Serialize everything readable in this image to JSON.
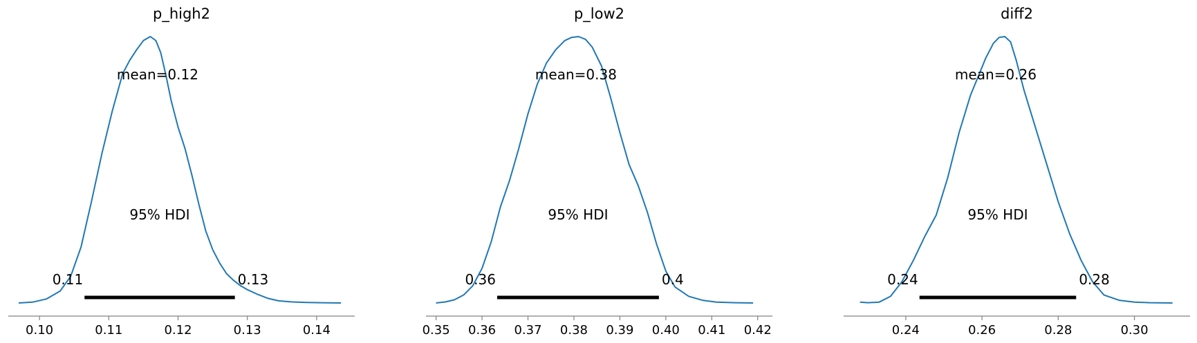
{
  "chart_data": [
    {
      "type": "area",
      "title": "p_high2",
      "xlim": [
        0.0955,
        0.1455
      ],
      "xticks": [
        0.1,
        0.11,
        0.12,
        0.13,
        0.14
      ],
      "xtick_labels": [
        "0.10",
        "0.11",
        "0.12",
        "0.13",
        "0.14"
      ],
      "curve": {
        "x": [
          0.097,
          0.099,
          0.101,
          0.103,
          0.1045,
          0.106,
          0.1075,
          0.109,
          0.1105,
          0.112,
          0.113,
          0.114,
          0.115,
          0.116,
          0.1168,
          0.1175,
          0.1182,
          0.119,
          0.12,
          0.121,
          0.122,
          0.123,
          0.124,
          0.125,
          0.126,
          0.127,
          0.128,
          0.129,
          0.13,
          0.1315,
          0.133,
          0.1345,
          0.1365,
          0.1385,
          0.1405,
          0.1435
        ],
        "y": [
          0.0,
          0.003,
          0.015,
          0.045,
          0.1,
          0.21,
          0.38,
          0.56,
          0.72,
          0.86,
          0.91,
          0.95,
          0.985,
          1.0,
          0.985,
          0.94,
          0.86,
          0.76,
          0.66,
          0.58,
          0.48,
          0.37,
          0.27,
          0.2,
          0.15,
          0.11,
          0.085,
          0.065,
          0.05,
          0.032,
          0.017,
          0.008,
          0.004,
          0.002,
          0.001,
          0.0
        ]
      },
      "mean_label": "mean=0.12",
      "hdi_label": "95% HDI",
      "hdi": [
        0.1065,
        0.1282
      ],
      "hdi_low_label": "0.11",
      "hdi_high_label": "0.13"
    },
    {
      "type": "area",
      "title": "p_low2",
      "xlim": [
        0.3478,
        0.4232
      ],
      "xticks": [
        0.35,
        0.36,
        0.37,
        0.38,
        0.39,
        0.4,
        0.41,
        0.42
      ],
      "xtick_labels": [
        "0.35",
        "0.36",
        "0.37",
        "0.38",
        "0.39",
        "0.40",
        "0.41",
        "0.42"
      ],
      "curve": {
        "x": [
          0.35,
          0.352,
          0.354,
          0.356,
          0.358,
          0.36,
          0.362,
          0.364,
          0.366,
          0.368,
          0.37,
          0.372,
          0.374,
          0.376,
          0.378,
          0.3795,
          0.381,
          0.3825,
          0.384,
          0.386,
          0.388,
          0.39,
          0.392,
          0.394,
          0.396,
          0.398,
          0.4,
          0.402,
          0.405,
          0.408,
          0.411,
          0.415,
          0.419
        ],
        "y": [
          0.0,
          0.004,
          0.012,
          0.03,
          0.065,
          0.13,
          0.23,
          0.36,
          0.46,
          0.58,
          0.71,
          0.82,
          0.9,
          0.95,
          0.985,
          0.997,
          1.0,
          0.99,
          0.96,
          0.89,
          0.77,
          0.64,
          0.52,
          0.44,
          0.34,
          0.22,
          0.12,
          0.06,
          0.025,
          0.01,
          0.003,
          0.001,
          0.0
        ]
      },
      "mean_label": "mean=0.38",
      "hdi_label": "95% HDI",
      "hdi": [
        0.3633,
        0.3985
      ],
      "hdi_low_label": "0.36",
      "hdi_high_label": "0.4"
    },
    {
      "type": "area",
      "title": "diff2",
      "xlim": [
        0.2237,
        0.3146
      ],
      "xticks": [
        0.24,
        0.26,
        0.28,
        0.3
      ],
      "xtick_labels": [
        "0.24",
        "0.26",
        "0.28",
        "0.30"
      ],
      "curve": {
        "x": [
          0.228,
          0.23,
          0.233,
          0.236,
          0.239,
          0.242,
          0.245,
          0.248,
          0.251,
          0.254,
          0.257,
          0.259,
          0.261,
          0.263,
          0.2645,
          0.266,
          0.2675,
          0.269,
          0.271,
          0.274,
          0.277,
          0.28,
          0.283,
          0.286,
          0.289,
          0.292,
          0.296,
          0.3,
          0.304,
          0.31
        ],
        "y": [
          0.003,
          0.001,
          0.003,
          0.025,
          0.08,
          0.16,
          0.25,
          0.33,
          0.47,
          0.64,
          0.78,
          0.85,
          0.92,
          0.975,
          0.997,
          1.0,
          0.98,
          0.91,
          0.8,
          0.66,
          0.52,
          0.38,
          0.26,
          0.16,
          0.08,
          0.03,
          0.01,
          0.003,
          0.001,
          0.0
        ]
      },
      "mean_label": "mean=0.26",
      "hdi_label": "95% HDI",
      "hdi": [
        0.2436,
        0.2847
      ],
      "hdi_low_label": "0.24",
      "hdi_high_label": "0.28"
    }
  ],
  "colors": {
    "curve": "#1f77b4",
    "hdi": "#000000",
    "axis": "#808080",
    "text": "#000000"
  }
}
